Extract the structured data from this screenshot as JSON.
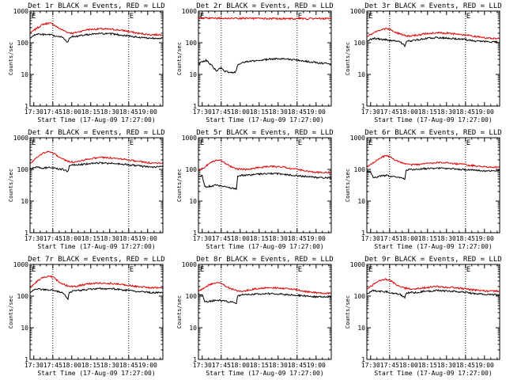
{
  "figure": {
    "colors": {
      "events": "#000000",
      "lld": "#e00000",
      "axis": "#000000",
      "background": "#ffffff"
    }
  },
  "chart_data": [
    {
      "type": "line",
      "title": "Det 1r BLACK = Events, RED = LLD",
      "xlabel": "Start Time (17-Aug-09 17:27:00)",
      "ylabel": "Counts/sec",
      "corner_marks": [
        "E",
        "E"
      ],
      "xticks": [
        "17:30",
        "17:45",
        "18:00",
        "18:15",
        "18:30",
        "18:45",
        "19:00"
      ],
      "yticks": [
        "1",
        "10",
        "100",
        "1000"
      ],
      "yscale": "log",
      "ylim": [
        1,
        1000
      ],
      "xlim_minutes_after_start": [
        0,
        105
      ],
      "vlines_minutes_after_start": [
        18,
        78
      ],
      "series": [
        {
          "color": "red",
          "x": [
            0,
            5,
            10,
            15,
            18,
            22,
            26,
            30,
            34,
            38,
            45,
            55,
            65,
            75,
            85,
            95,
            105
          ],
          "y": [
            200,
            280,
            380,
            420,
            390,
            300,
            250,
            210,
            200,
            220,
            260,
            275,
            265,
            240,
            200,
            180,
            180
          ]
        },
        {
          "color": "black",
          "x": [
            0,
            5,
            10,
            15,
            18,
            22,
            26,
            30,
            31,
            34,
            38,
            45,
            55,
            65,
            75,
            85,
            95,
            105
          ],
          "y": [
            140,
            190,
            180,
            180,
            170,
            155,
            150,
            100,
            140,
            160,
            160,
            180,
            195,
            190,
            170,
            150,
            140,
            140
          ]
        }
      ]
    },
    {
      "type": "line",
      "title": "Det 2r BLACK = Events, RED = LLD",
      "xlabel": "Start Time (17-Aug-09 17:27:00)",
      "ylabel": "Counts/sec",
      "corner_marks": [
        "E",
        "E"
      ],
      "xticks": [
        "17:30",
        "17:45",
        "18:00",
        "18:15",
        "18:30",
        "18:45",
        "19:00"
      ],
      "yticks": [
        "1",
        "10",
        "100",
        "1000"
      ],
      "yscale": "log",
      "ylim": [
        1,
        1000
      ],
      "xlim_minutes_after_start": [
        0,
        105
      ],
      "vlines_minutes_after_start": [
        18,
        78
      ],
      "series": [
        {
          "color": "red",
          "x": [
            0,
            20,
            40,
            60,
            80,
            105
          ],
          "y": [
            600,
            590,
            590,
            580,
            575,
            580
          ]
        },
        {
          "color": "black",
          "x": [
            0,
            3,
            6,
            10,
            14,
            18,
            20,
            24,
            28,
            30,
            31,
            35,
            45,
            55,
            65,
            75,
            85,
            95,
            105
          ],
          "y": [
            22,
            25,
            28,
            20,
            13,
            16,
            13,
            12,
            11,
            13,
            20,
            24,
            27,
            30,
            32,
            29,
            26,
            23,
            22
          ]
        }
      ]
    },
    {
      "type": "line",
      "title": "Det 3r BLACK = Events, RED = LLD",
      "xlabel": "Start Time (17-Aug-09 17:27:00)",
      "ylabel": "Counts/sec",
      "corner_marks": [
        "E",
        "E"
      ],
      "xticks": [
        "17:30",
        "17:45",
        "18:00",
        "18:15",
        "18:30",
        "18:45",
        "19:00"
      ],
      "yticks": [
        "1",
        "10",
        "100",
        "1000"
      ],
      "yscale": "log",
      "ylim": [
        1,
        1000
      ],
      "xlim_minutes_after_start": [
        0,
        105
      ],
      "vlines_minutes_after_start": [
        18,
        78
      ],
      "series": [
        {
          "color": "red",
          "x": [
            0,
            5,
            10,
            15,
            18,
            22,
            26,
            30,
            34,
            38,
            45,
            55,
            65,
            75,
            85,
            95,
            105
          ],
          "y": [
            160,
            200,
            250,
            280,
            270,
            220,
            190,
            170,
            160,
            170,
            190,
            210,
            200,
            180,
            160,
            140,
            135
          ]
        },
        {
          "color": "black",
          "x": [
            0,
            5,
            10,
            15,
            18,
            22,
            26,
            30,
            31,
            34,
            38,
            45,
            55,
            65,
            75,
            85,
            95,
            105
          ],
          "y": [
            110,
            140,
            130,
            125,
            120,
            115,
            110,
            80,
            105,
            115,
            120,
            135,
            145,
            140,
            130,
            115,
            108,
            105
          ]
        }
      ]
    },
    {
      "type": "line",
      "title": "Det 4r BLACK = Events, RED = LLD",
      "xlabel": "Start Time (17-Aug-09 17:27:00)",
      "ylabel": "Counts/sec",
      "corner_marks": [
        "E",
        "E"
      ],
      "xticks": [
        "17:30",
        "17:45",
        "18:00",
        "18:15",
        "18:30",
        "18:45",
        "19:00"
      ],
      "yticks": [
        "1",
        "10",
        "100",
        "1000"
      ],
      "yscale": "log",
      "ylim": [
        1,
        1000
      ],
      "xlim_minutes_after_start": [
        0,
        105
      ],
      "vlines_minutes_after_start": [
        18,
        78
      ],
      "series": [
        {
          "color": "red",
          "x": [
            0,
            5,
            10,
            15,
            18,
            22,
            26,
            30,
            34,
            38,
            45,
            55,
            65,
            75,
            85,
            95,
            105
          ],
          "y": [
            150,
            230,
            330,
            370,
            340,
            260,
            210,
            180,
            170,
            180,
            210,
            240,
            230,
            210,
            180,
            160,
            160
          ]
        },
        {
          "color": "black",
          "x": [
            0,
            5,
            10,
            15,
            18,
            22,
            26,
            30,
            31,
            34,
            38,
            45,
            55,
            65,
            75,
            85,
            95,
            105
          ],
          "y": [
            100,
            120,
            110,
            115,
            110,
            105,
            100,
            85,
            130,
            140,
            140,
            150,
            160,
            155,
            145,
            130,
            120,
            120
          ]
        }
      ]
    },
    {
      "type": "line",
      "title": "Det 5r BLACK = Events, RED = LLD",
      "xlabel": "Start Time (17-Aug-09 17:27:00)",
      "ylabel": "Counts/sec",
      "corner_marks": [
        "E",
        "E"
      ],
      "xticks": [
        "17:30",
        "17:45",
        "18:00",
        "18:15",
        "18:30",
        "18:45",
        "19:00"
      ],
      "yticks": [
        "1",
        "10",
        "100",
        "1000"
      ],
      "yscale": "log",
      "ylim": [
        1,
        1000
      ],
      "xlim_minutes_after_start": [
        0,
        105
      ],
      "vlines_minutes_after_start": [
        18,
        78
      ],
      "series": [
        {
          "color": "red",
          "x": [
            0,
            5,
            10,
            15,
            18,
            22,
            26,
            30,
            34,
            38,
            45,
            55,
            65,
            75,
            85,
            95,
            105
          ],
          "y": [
            90,
            120,
            170,
            200,
            190,
            150,
            120,
            105,
            100,
            100,
            110,
            125,
            120,
            105,
            90,
            80,
            80
          ]
        },
        {
          "color": "black",
          "x": [
            0,
            3,
            5,
            10,
            15,
            18,
            22,
            26,
            30,
            31,
            34,
            38,
            45,
            55,
            65,
            75,
            85,
            95,
            105
          ],
          "y": [
            60,
            65,
            28,
            30,
            32,
            30,
            28,
            26,
            25,
            60,
            65,
            65,
            70,
            75,
            72,
            65,
            60,
            55,
            55
          ]
        }
      ]
    },
    {
      "type": "line",
      "title": "Det 6r BLACK = Events, RED = LLD",
      "xlabel": "Start Time (17-Aug-09 17:27:00)",
      "ylabel": "Counts/sec",
      "corner_marks": [
        "E",
        "E"
      ],
      "xticks": [
        "17:30",
        "17:45",
        "18:00",
        "18:15",
        "18:30",
        "18:45",
        "19:00"
      ],
      "yticks": [
        "1",
        "10",
        "100",
        "1000"
      ],
      "yscale": "log",
      "ylim": [
        1,
        1000
      ],
      "xlim_minutes_after_start": [
        0,
        105
      ],
      "vlines_minutes_after_start": [
        18,
        78
      ],
      "series": [
        {
          "color": "red",
          "x": [
            0,
            5,
            10,
            15,
            18,
            22,
            26,
            30,
            34,
            38,
            45,
            55,
            65,
            75,
            85,
            95,
            105
          ],
          "y": [
            120,
            160,
            230,
            270,
            250,
            200,
            170,
            150,
            140,
            140,
            150,
            165,
            160,
            145,
            130,
            120,
            120
          ]
        },
        {
          "color": "black",
          "x": [
            0,
            3,
            5,
            10,
            15,
            18,
            22,
            26,
            30,
            31,
            34,
            38,
            45,
            55,
            65,
            75,
            85,
            95,
            105
          ],
          "y": [
            80,
            85,
            55,
            60,
            65,
            62,
            58,
            55,
            50,
            90,
            100,
            100,
            105,
            110,
            105,
            100,
            95,
            90,
            90
          ]
        }
      ]
    },
    {
      "type": "line",
      "title": "Det 7r BLACK = Events, RED = LLD",
      "xlabel": "Start Time (17-Aug-09 17:27:00)",
      "ylabel": "Counts/sec",
      "corner_marks": [
        "E",
        "E"
      ],
      "xticks": [
        "17:30",
        "17:45",
        "18:00",
        "18:15",
        "18:30",
        "18:45",
        "19:00"
      ],
      "yticks": [
        "1",
        "10",
        "100",
        "1000"
      ],
      "yscale": "log",
      "ylim": [
        1,
        1000
      ],
      "xlim_minutes_after_start": [
        0,
        105
      ],
      "vlines_minutes_after_start": [
        18,
        78
      ],
      "series": [
        {
          "color": "red",
          "x": [
            0,
            5,
            10,
            15,
            18,
            22,
            26,
            30,
            34,
            38,
            45,
            55,
            65,
            75,
            85,
            95,
            105
          ],
          "y": [
            180,
            280,
            390,
            430,
            400,
            300,
            240,
            210,
            200,
            210,
            240,
            260,
            250,
            230,
            200,
            185,
            180
          ]
        },
        {
          "color": "black",
          "x": [
            0,
            5,
            10,
            15,
            18,
            22,
            26,
            30,
            31,
            34,
            38,
            45,
            55,
            65,
            75,
            85,
            95,
            105
          ],
          "y": [
            130,
            170,
            160,
            160,
            150,
            140,
            130,
            80,
            130,
            145,
            150,
            160,
            175,
            170,
            155,
            140,
            130,
            130
          ]
        }
      ]
    },
    {
      "type": "line",
      "title": "Det 8r BLACK = Events, RED = LLD",
      "xlabel": "Start Time (17-Aug-09 17:27:00)",
      "ylabel": "Counts/sec",
      "corner_marks": [
        "E",
        "E"
      ],
      "xticks": [
        "17:30",
        "17:45",
        "18:00",
        "18:15",
        "18:30",
        "18:45",
        "19:00"
      ],
      "yticks": [
        "1",
        "10",
        "100",
        "1000"
      ],
      "yscale": "log",
      "ylim": [
        1,
        1000
      ],
      "xlim_minutes_after_start": [
        0,
        105
      ],
      "vlines_minutes_after_start": [
        18,
        78
      ],
      "series": [
        {
          "color": "red",
          "x": [
            0,
            5,
            10,
            15,
            18,
            22,
            26,
            30,
            34,
            38,
            45,
            55,
            65,
            75,
            85,
            95,
            105
          ],
          "y": [
            140,
            190,
            240,
            270,
            250,
            200,
            170,
            150,
            145,
            150,
            170,
            185,
            180,
            165,
            140,
            125,
            125
          ]
        },
        {
          "color": "black",
          "x": [
            0,
            3,
            5,
            10,
            15,
            18,
            22,
            26,
            30,
            31,
            34,
            38,
            45,
            55,
            65,
            75,
            85,
            95,
            105
          ],
          "y": [
            110,
            115,
            65,
            70,
            75,
            72,
            68,
            65,
            60,
            100,
            110,
            110,
            115,
            120,
            115,
            108,
            100,
            95,
            95
          ]
        }
      ]
    },
    {
      "type": "line",
      "title": "Det 9r BLACK = Events, RED = LLD",
      "xlabel": "Start Time (17-Aug-09 17:27:00)",
      "ylabel": "Counts/sec",
      "corner_marks": [
        "E",
        "E"
      ],
      "xticks": [
        "17:30",
        "17:45",
        "18:00",
        "18:15",
        "18:30",
        "18:45",
        "19:00"
      ],
      "yticks": [
        "1",
        "10",
        "100",
        "1000"
      ],
      "yscale": "log",
      "ylim": [
        1,
        1000
      ],
      "xlim_minutes_after_start": [
        0,
        105
      ],
      "vlines_minutes_after_start": [
        18,
        78
      ],
      "series": [
        {
          "color": "red",
          "x": [
            0,
            5,
            10,
            15,
            18,
            22,
            26,
            30,
            34,
            38,
            45,
            55,
            65,
            75,
            85,
            95,
            105
          ],
          "y": [
            170,
            230,
            310,
            340,
            320,
            250,
            200,
            180,
            170,
            170,
            185,
            200,
            190,
            175,
            155,
            145,
            145
          ]
        },
        {
          "color": "black",
          "x": [
            0,
            5,
            10,
            15,
            18,
            22,
            26,
            30,
            31,
            34,
            38,
            45,
            55,
            65,
            75,
            85,
            95,
            105
          ],
          "y": [
            120,
            150,
            140,
            140,
            130,
            120,
            115,
            90,
            120,
            130,
            130,
            140,
            150,
            145,
            135,
            120,
            112,
            110
          ]
        }
      ]
    }
  ]
}
